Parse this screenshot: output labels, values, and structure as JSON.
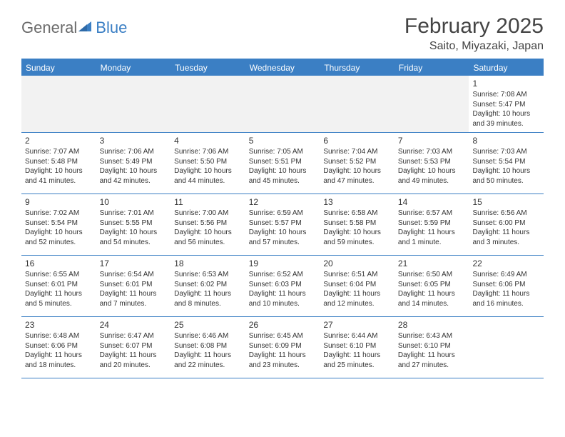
{
  "logo": {
    "general": "General",
    "blue": "Blue"
  },
  "title": "February 2025",
  "location": "Saito, Miyazaki, Japan",
  "colors": {
    "accent": "#3b7fc4",
    "text": "#333333",
    "logo_gray": "#6b6b6b",
    "empty_bg": "#f2f2f2",
    "background": "#ffffff"
  },
  "dayHeaders": [
    "Sunday",
    "Monday",
    "Tuesday",
    "Wednesday",
    "Thursday",
    "Friday",
    "Saturday"
  ],
  "weeks": [
    [
      {
        "n": "",
        "sr": "",
        "ss": "",
        "dl1": "",
        "dl2": ""
      },
      {
        "n": "",
        "sr": "",
        "ss": "",
        "dl1": "",
        "dl2": ""
      },
      {
        "n": "",
        "sr": "",
        "ss": "",
        "dl1": "",
        "dl2": ""
      },
      {
        "n": "",
        "sr": "",
        "ss": "",
        "dl1": "",
        "dl2": ""
      },
      {
        "n": "",
        "sr": "",
        "ss": "",
        "dl1": "",
        "dl2": ""
      },
      {
        "n": "",
        "sr": "",
        "ss": "",
        "dl1": "",
        "dl2": ""
      },
      {
        "n": "1",
        "sr": "Sunrise: 7:08 AM",
        "ss": "Sunset: 5:47 PM",
        "dl1": "Daylight: 10 hours",
        "dl2": "and 39 minutes."
      }
    ],
    [
      {
        "n": "2",
        "sr": "Sunrise: 7:07 AM",
        "ss": "Sunset: 5:48 PM",
        "dl1": "Daylight: 10 hours",
        "dl2": "and 41 minutes."
      },
      {
        "n": "3",
        "sr": "Sunrise: 7:06 AM",
        "ss": "Sunset: 5:49 PM",
        "dl1": "Daylight: 10 hours",
        "dl2": "and 42 minutes."
      },
      {
        "n": "4",
        "sr": "Sunrise: 7:06 AM",
        "ss": "Sunset: 5:50 PM",
        "dl1": "Daylight: 10 hours",
        "dl2": "and 44 minutes."
      },
      {
        "n": "5",
        "sr": "Sunrise: 7:05 AM",
        "ss": "Sunset: 5:51 PM",
        "dl1": "Daylight: 10 hours",
        "dl2": "and 45 minutes."
      },
      {
        "n": "6",
        "sr": "Sunrise: 7:04 AM",
        "ss": "Sunset: 5:52 PM",
        "dl1": "Daylight: 10 hours",
        "dl2": "and 47 minutes."
      },
      {
        "n": "7",
        "sr": "Sunrise: 7:03 AM",
        "ss": "Sunset: 5:53 PM",
        "dl1": "Daylight: 10 hours",
        "dl2": "and 49 minutes."
      },
      {
        "n": "8",
        "sr": "Sunrise: 7:03 AM",
        "ss": "Sunset: 5:54 PM",
        "dl1": "Daylight: 10 hours",
        "dl2": "and 50 minutes."
      }
    ],
    [
      {
        "n": "9",
        "sr": "Sunrise: 7:02 AM",
        "ss": "Sunset: 5:54 PM",
        "dl1": "Daylight: 10 hours",
        "dl2": "and 52 minutes."
      },
      {
        "n": "10",
        "sr": "Sunrise: 7:01 AM",
        "ss": "Sunset: 5:55 PM",
        "dl1": "Daylight: 10 hours",
        "dl2": "and 54 minutes."
      },
      {
        "n": "11",
        "sr": "Sunrise: 7:00 AM",
        "ss": "Sunset: 5:56 PM",
        "dl1": "Daylight: 10 hours",
        "dl2": "and 56 minutes."
      },
      {
        "n": "12",
        "sr": "Sunrise: 6:59 AM",
        "ss": "Sunset: 5:57 PM",
        "dl1": "Daylight: 10 hours",
        "dl2": "and 57 minutes."
      },
      {
        "n": "13",
        "sr": "Sunrise: 6:58 AM",
        "ss": "Sunset: 5:58 PM",
        "dl1": "Daylight: 10 hours",
        "dl2": "and 59 minutes."
      },
      {
        "n": "14",
        "sr": "Sunrise: 6:57 AM",
        "ss": "Sunset: 5:59 PM",
        "dl1": "Daylight: 11 hours",
        "dl2": "and 1 minute."
      },
      {
        "n": "15",
        "sr": "Sunrise: 6:56 AM",
        "ss": "Sunset: 6:00 PM",
        "dl1": "Daylight: 11 hours",
        "dl2": "and 3 minutes."
      }
    ],
    [
      {
        "n": "16",
        "sr": "Sunrise: 6:55 AM",
        "ss": "Sunset: 6:01 PM",
        "dl1": "Daylight: 11 hours",
        "dl2": "and 5 minutes."
      },
      {
        "n": "17",
        "sr": "Sunrise: 6:54 AM",
        "ss": "Sunset: 6:01 PM",
        "dl1": "Daylight: 11 hours",
        "dl2": "and 7 minutes."
      },
      {
        "n": "18",
        "sr": "Sunrise: 6:53 AM",
        "ss": "Sunset: 6:02 PM",
        "dl1": "Daylight: 11 hours",
        "dl2": "and 8 minutes."
      },
      {
        "n": "19",
        "sr": "Sunrise: 6:52 AM",
        "ss": "Sunset: 6:03 PM",
        "dl1": "Daylight: 11 hours",
        "dl2": "and 10 minutes."
      },
      {
        "n": "20",
        "sr": "Sunrise: 6:51 AM",
        "ss": "Sunset: 6:04 PM",
        "dl1": "Daylight: 11 hours",
        "dl2": "and 12 minutes."
      },
      {
        "n": "21",
        "sr": "Sunrise: 6:50 AM",
        "ss": "Sunset: 6:05 PM",
        "dl1": "Daylight: 11 hours",
        "dl2": "and 14 minutes."
      },
      {
        "n": "22",
        "sr": "Sunrise: 6:49 AM",
        "ss": "Sunset: 6:06 PM",
        "dl1": "Daylight: 11 hours",
        "dl2": "and 16 minutes."
      }
    ],
    [
      {
        "n": "23",
        "sr": "Sunrise: 6:48 AM",
        "ss": "Sunset: 6:06 PM",
        "dl1": "Daylight: 11 hours",
        "dl2": "and 18 minutes."
      },
      {
        "n": "24",
        "sr": "Sunrise: 6:47 AM",
        "ss": "Sunset: 6:07 PM",
        "dl1": "Daylight: 11 hours",
        "dl2": "and 20 minutes."
      },
      {
        "n": "25",
        "sr": "Sunrise: 6:46 AM",
        "ss": "Sunset: 6:08 PM",
        "dl1": "Daylight: 11 hours",
        "dl2": "and 22 minutes."
      },
      {
        "n": "26",
        "sr": "Sunrise: 6:45 AM",
        "ss": "Sunset: 6:09 PM",
        "dl1": "Daylight: 11 hours",
        "dl2": "and 23 minutes."
      },
      {
        "n": "27",
        "sr": "Sunrise: 6:44 AM",
        "ss": "Sunset: 6:10 PM",
        "dl1": "Daylight: 11 hours",
        "dl2": "and 25 minutes."
      },
      {
        "n": "28",
        "sr": "Sunrise: 6:43 AM",
        "ss": "Sunset: 6:10 PM",
        "dl1": "Daylight: 11 hours",
        "dl2": "and 27 minutes."
      },
      {
        "n": "",
        "sr": "",
        "ss": "",
        "dl1": "",
        "dl2": ""
      }
    ]
  ]
}
